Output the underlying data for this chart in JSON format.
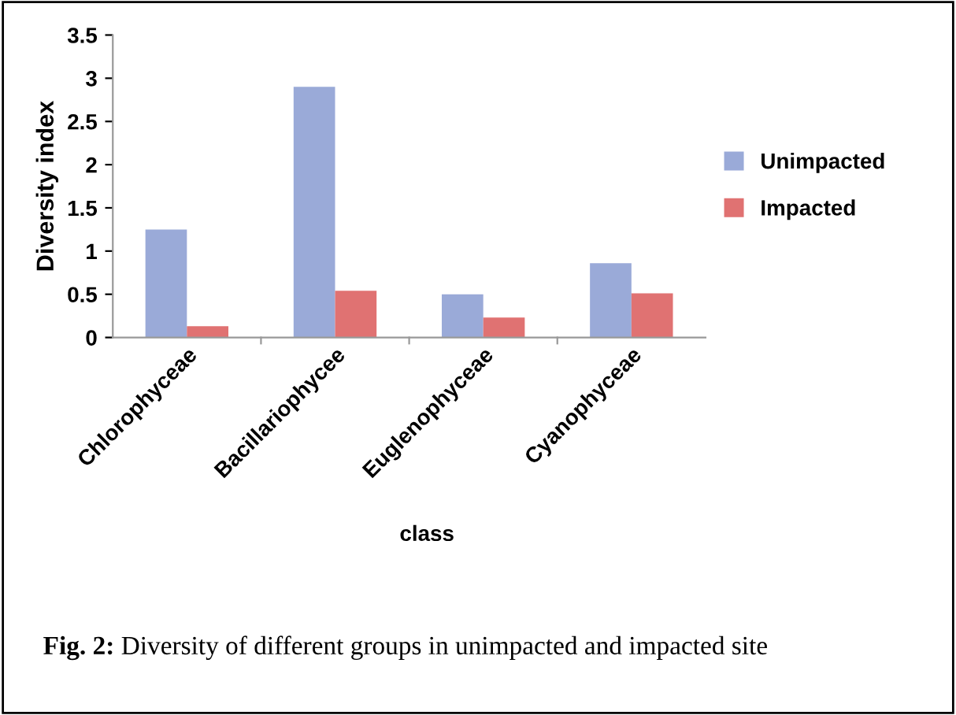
{
  "chart_data": {
    "type": "bar",
    "xlabel": "class",
    "ylabel": "Diversity index",
    "categories": [
      "Chlorophyceae",
      "Bacillariophycee",
      "Euglenophyceae",
      "Cyanophyceae"
    ],
    "series": [
      {
        "name": "Unimpacted",
        "color": "#9aaad8",
        "values": [
          1.25,
          2.9,
          0.5,
          0.86
        ]
      },
      {
        "name": "Impacted",
        "color": "#e07272",
        "values": [
          0.13,
          0.54,
          0.23,
          0.51
        ]
      }
    ],
    "ylim": [
      0,
      3.5
    ],
    "yticks": [
      0,
      0.5,
      1,
      1.5,
      2,
      2.5,
      3,
      3.5
    ],
    "grid": false,
    "legend": "right",
    "annotations": [
      "Fig. 2: Diversity of different groups in unimpacted and impacted site"
    ]
  }
}
